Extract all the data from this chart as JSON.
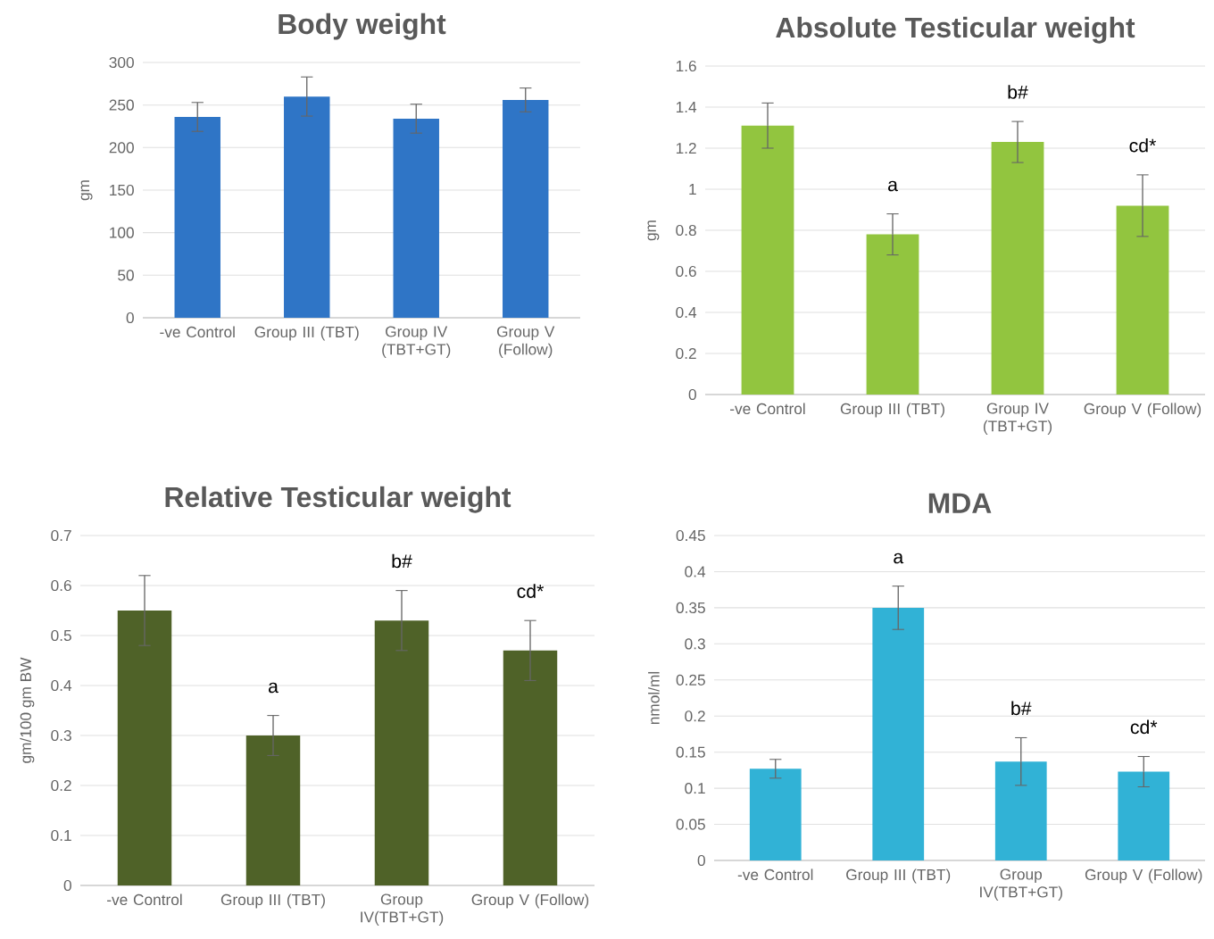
{
  "chart_data": [
    {
      "type": "bar",
      "title": "Body weight",
      "ylabel": "gm",
      "categories": [
        "-ve Control",
        "Group III (TBT)",
        "Group IV (TBT+GT)",
        "Group V (Follow)"
      ],
      "values": [
        236,
        260,
        234,
        256
      ],
      "errors": [
        17,
        23,
        17,
        14
      ],
      "color": "#2f75c6",
      "ylim": [
        0,
        300
      ],
      "yticks": [
        0,
        50,
        100,
        150,
        200,
        250,
        300
      ],
      "grid": "y"
    },
    {
      "type": "bar",
      "title": "Absolute Testicular weight",
      "ylabel": "gm",
      "categories": [
        "-ve Control",
        "Group III (TBT)",
        "Group IV (TBT+GT)",
        "Group V (Follow)"
      ],
      "values": [
        1.31,
        0.78,
        1.23,
        0.92
      ],
      "errors": [
        0.11,
        0.1,
        0.1,
        0.15
      ],
      "color": "#92c53f",
      "ylim": [
        0,
        1.6
      ],
      "yticks": [
        0,
        0.2,
        0.4,
        0.6,
        0.8,
        1,
        1.2,
        1.4,
        1.6
      ],
      "grid": "y",
      "value_labels": [
        null,
        "a",
        "b#",
        "cd*"
      ]
    },
    {
      "type": "bar",
      "title": "Relative Testicular  weight",
      "ylabel": "gm/100 gm BW",
      "categories": [
        "-ve Control",
        "Group III (TBT)",
        "Group IV(TBT+GT)",
        "Group V (Follow)"
      ],
      "values": [
        0.55,
        0.3,
        0.53,
        0.47
      ],
      "errors": [
        0.07,
        0.04,
        0.06,
        0.06
      ],
      "color": "#4f6228",
      "ylim": [
        0,
        0.7
      ],
      "yticks": [
        0,
        0.1,
        0.2,
        0.3,
        0.4,
        0.5,
        0.6,
        0.7
      ],
      "grid": "y",
      "value_labels": [
        null,
        "a",
        "b#",
        "cd*"
      ]
    },
    {
      "type": "bar",
      "title": "MDA",
      "ylabel": "nmol/ml",
      "categories": [
        "-ve Control",
        "Group III (TBT)",
        "Group IV(TBT+GT)",
        "Group V (Follow)"
      ],
      "values": [
        0.127,
        0.35,
        0.137,
        0.123
      ],
      "errors": [
        0.013,
        0.03,
        0.033,
        0.021
      ],
      "color": "#31b2d6",
      "ylim": [
        0,
        0.45
      ],
      "yticks": [
        0,
        0.05,
        0.1,
        0.15,
        0.2,
        0.25,
        0.3,
        0.35,
        0.4,
        0.45
      ],
      "grid": "y",
      "value_labels": [
        null,
        "a",
        "b#",
        "cd*"
      ]
    }
  ]
}
